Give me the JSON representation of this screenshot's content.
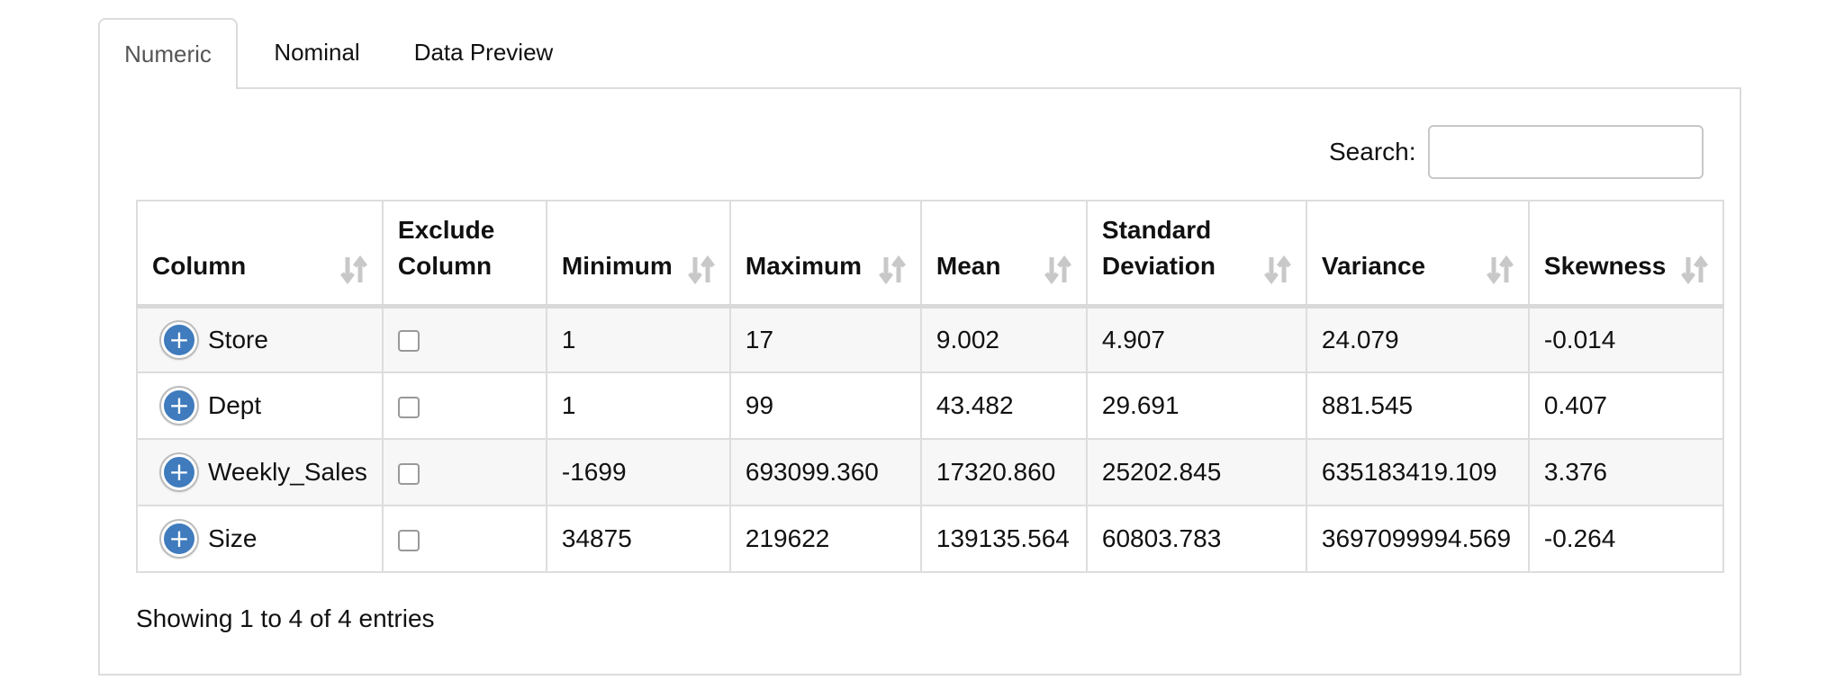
{
  "tabs": [
    {
      "label": "Numeric",
      "active": true
    },
    {
      "label": "Nominal",
      "active": false
    },
    {
      "label": "Data Preview",
      "active": false
    }
  ],
  "search": {
    "label": "Search:",
    "value": "",
    "placeholder": ""
  },
  "table": {
    "headers": [
      {
        "line1": "",
        "line2": "Column",
        "sortable": true
      },
      {
        "line1": "Exclude",
        "line2": "Column",
        "sortable": false
      },
      {
        "line1": "",
        "line2": "Minimum",
        "sortable": true
      },
      {
        "line1": "",
        "line2": "Maximum",
        "sortable": true
      },
      {
        "line1": "",
        "line2": "Mean",
        "sortable": true
      },
      {
        "line1": "Standard",
        "line2": "Deviation",
        "sortable": true
      },
      {
        "line1": "",
        "line2": "Variance",
        "sortable": true
      },
      {
        "line1": "",
        "line2": "Skewness",
        "sortable": true
      }
    ],
    "rows": [
      {
        "column": "Store",
        "excluded": false,
        "minimum": "1",
        "maximum": "17",
        "mean": "9.002",
        "std": "4.907",
        "variance": "24.079",
        "skewness": "-0.014"
      },
      {
        "column": "Dept",
        "excluded": false,
        "minimum": "1",
        "maximum": "99",
        "mean": "43.482",
        "std": "29.691",
        "variance": "881.545",
        "skewness": "0.407"
      },
      {
        "column": "Weekly_Sales",
        "excluded": false,
        "minimum": "-1699",
        "maximum": "693099.360",
        "mean": "17320.860",
        "std": "25202.845",
        "variance": "635183419.109",
        "skewness": "3.376"
      },
      {
        "column": "Size",
        "excluded": false,
        "minimum": "34875",
        "maximum": "219622",
        "mean": "139135.564",
        "std": "60803.783",
        "variance": "3697099994.569",
        "skewness": "-0.264"
      }
    ]
  },
  "footer": {
    "info": "Showing 1 to 4 of 4 entries"
  },
  "icons": {
    "expand": "plus-circle-icon",
    "sort": "sort-both-icon"
  },
  "colors": {
    "expand_button": "#3f7bbd",
    "sort_icon": "#c8c8c8",
    "border": "#dddddd"
  }
}
